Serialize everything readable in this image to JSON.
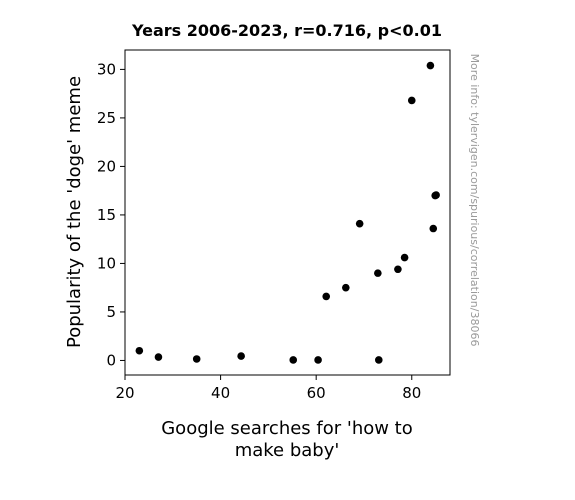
{
  "chart_data": {
    "type": "scatter",
    "title": "Years 2006-2023, r=0.716, p<0.01",
    "xlabel_lines": [
      "Google searches for 'how to",
      "make baby'"
    ],
    "ylabel": "Popularity of the 'doge' meme",
    "side_note": "More info: tylervigen.com/spurious/correlation/38066",
    "xlim": [
      20,
      88
    ],
    "ylim": [
      -1.5,
      32
    ],
    "xticks": [
      20,
      40,
      60,
      80
    ],
    "yticks": [
      0,
      5,
      10,
      15,
      20,
      25,
      30
    ],
    "points": [
      {
        "x": 23.0,
        "y": 1.0
      },
      {
        "x": 27.0,
        "y": 0.35
      },
      {
        "x": 35.0,
        "y": 0.15
      },
      {
        "x": 44.3,
        "y": 0.45
      },
      {
        "x": 55.2,
        "y": 0.05
      },
      {
        "x": 60.4,
        "y": 0.05
      },
      {
        "x": 62.1,
        "y": 6.6
      },
      {
        "x": 66.2,
        "y": 7.5
      },
      {
        "x": 69.1,
        "y": 14.1
      },
      {
        "x": 72.9,
        "y": 9.0
      },
      {
        "x": 73.1,
        "y": 0.05
      },
      {
        "x": 77.1,
        "y": 9.4
      },
      {
        "x": 78.5,
        "y": 10.6
      },
      {
        "x": 80.0,
        "y": 26.8
      },
      {
        "x": 83.9,
        "y": 30.4
      },
      {
        "x": 84.5,
        "y": 13.6
      },
      {
        "x": 84.9,
        "y": 17.0
      },
      {
        "x": 85.1,
        "y": 17.05
      }
    ],
    "marker_color": "#000000",
    "grid": false,
    "legend": "none"
  }
}
